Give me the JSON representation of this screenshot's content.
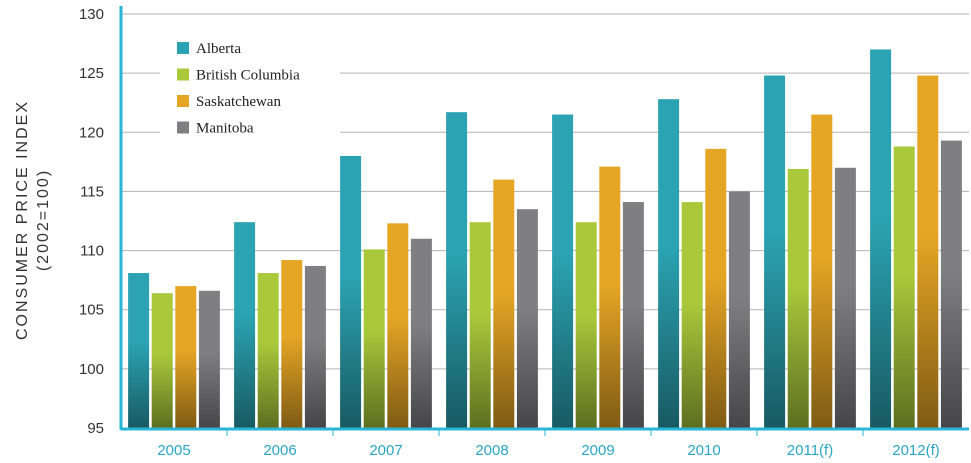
{
  "chart_data": {
    "type": "bar",
    "title": "",
    "ylabel_line1": "CONSUMER PRICE INDEX",
    "ylabel_line2": "(2002=100)",
    "xlabel": "",
    "categories": [
      "2005",
      "2006",
      "2007",
      "2008",
      "2009",
      "2010",
      "2011(f)",
      "2012(f)"
    ],
    "ylim": [
      95,
      130
    ],
    "yticks": [
      "95",
      "100",
      "105",
      "110",
      "115",
      "120",
      "125",
      "130"
    ],
    "grid": true,
    "legend_position": "top-left",
    "series": [
      {
        "name": "Alberta",
        "color": "#2ba3b2",
        "values": [
          108.1,
          112.4,
          118.0,
          121.7,
          121.5,
          122.8,
          124.8,
          127.0
        ]
      },
      {
        "name": "British Columbia",
        "color": "#a9c93b",
        "values": [
          106.4,
          108.1,
          110.1,
          112.4,
          112.4,
          114.1,
          116.9,
          118.8
        ]
      },
      {
        "name": "Saskatchewan",
        "color": "#e6a625",
        "values": [
          107.0,
          109.2,
          112.3,
          116.0,
          117.1,
          118.6,
          121.5,
          124.8
        ]
      },
      {
        "name": "Manitoba",
        "color": "#7f7f82",
        "values": [
          106.6,
          108.7,
          111.0,
          113.5,
          114.1,
          115.0,
          117.0,
          119.3
        ]
      }
    ]
  }
}
